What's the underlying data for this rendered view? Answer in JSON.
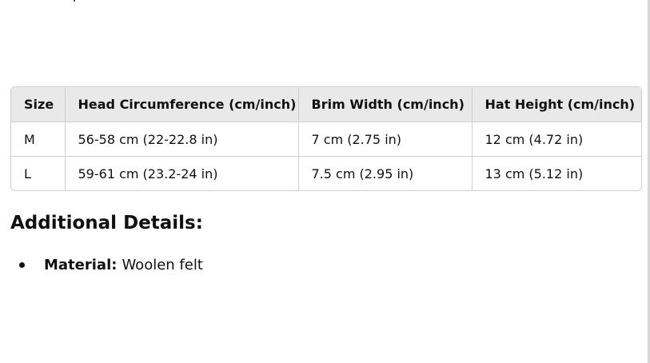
{
  "size_table": {
    "headers": [
      "Size",
      "Head Circumference (cm/inch)",
      "Brim Width (cm/inch)",
      "Hat Height (cm/inch)"
    ],
    "rows": [
      [
        "M",
        "56-58 cm (22-22.8 in)",
        "7 cm (2.75 in)",
        "12 cm (4.72 in)"
      ],
      [
        "L",
        "59-61 cm (23.2-24 in)",
        "7.5 cm (2.95 in)",
        "13 cm (5.12 in)"
      ]
    ]
  },
  "additional_details": {
    "heading": "Additional Details:",
    "items": [
      {
        "label": "Material:",
        "value": "Woolen felt"
      }
    ]
  },
  "colors": {
    "header_background": "#e9e9e9",
    "border": "#d0d0d0",
    "text": "#111111"
  }
}
